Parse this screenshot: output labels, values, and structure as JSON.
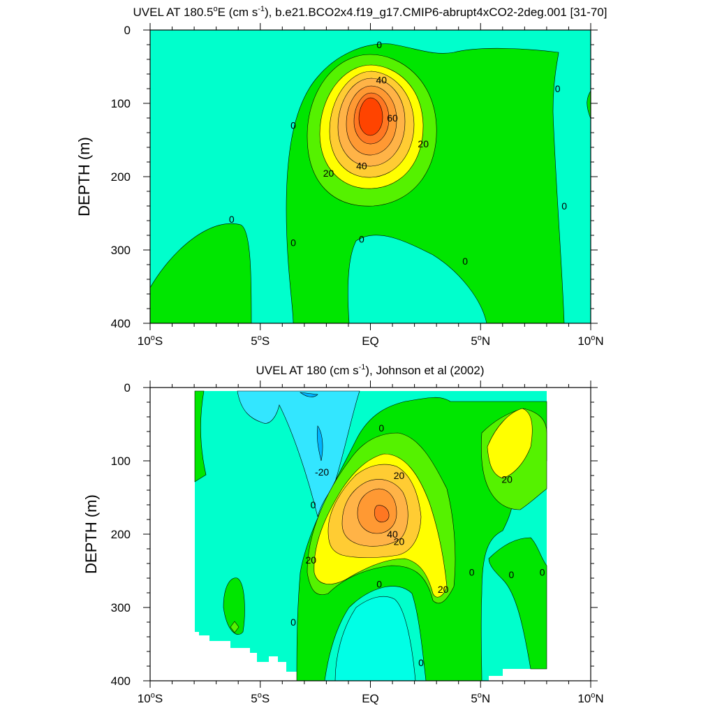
{
  "palette": {
    "cyan_light": "#00ffcc",
    "cyan": "#00ffe6",
    "blue_light": "#33e6ff",
    "blue": "#00b4ff",
    "green": "#00e600",
    "green_light": "#55f200",
    "yellow": "#ffff00",
    "gold": "#ffcc33",
    "orange_light": "#ffb347",
    "orange": "#ff9933",
    "orange_dark": "#ff4400"
  },
  "chart_data": [
    {
      "type": "contour",
      "title": "UVEL AT 180.5°E (cm s⁻¹), b.e21.BCO2x4.f19_g17.CMIP6-abrupt4xCO2-2deg.001 [31-70]",
      "title_parts": {
        "pre": "UVEL AT 180.5",
        "deg": "o",
        "mid": "E (cm s",
        "sup": "-1",
        "post": "), b.e21.BCO2x4.f19_g17.CMIP6-abrupt4xCO2-2deg.001 [31-70]"
      },
      "xlabel": "",
      "ylabel": "DEPTH (m)",
      "xlim": [
        -10,
        10
      ],
      "ylim": [
        0,
        400
      ],
      "x_ticks": [
        {
          "value": -10,
          "label": "10",
          "deg": "o",
          "hemi": "S"
        },
        {
          "value": -5,
          "label": "5",
          "deg": "o",
          "hemi": "S"
        },
        {
          "value": 0,
          "label": "EQ",
          "deg": "",
          "hemi": ""
        },
        {
          "value": 5,
          "label": "5",
          "deg": "o",
          "hemi": "N"
        },
        {
          "value": 10,
          "label": "10",
          "deg": "o",
          "hemi": "N"
        }
      ],
      "y_ticks": [
        0,
        100,
        200,
        300,
        400
      ],
      "y_tick_labels": [
        "0",
        "100",
        "200",
        "300",
        "400"
      ],
      "contour_interval": 10,
      "core": {
        "lat": 0.0,
        "depth": 125,
        "max": 70
      },
      "contour_labels": [
        {
          "text": "0",
          "lat": 0.4,
          "depth": 20
        },
        {
          "text": "40",
          "lat": 0.5,
          "depth": 68
        },
        {
          "text": "0",
          "lat": 8.5,
          "depth": 80
        },
        {
          "text": "0",
          "lat": -3.5,
          "depth": 130
        },
        {
          "text": "60",
          "lat": 1.0,
          "depth": 120
        },
        {
          "text": "20",
          "lat": 2.4,
          "depth": 155
        },
        {
          "text": "40",
          "lat": -0.4,
          "depth": 185
        },
        {
          "text": "20",
          "lat": -1.9,
          "depth": 195
        },
        {
          "text": "0",
          "lat": 8.8,
          "depth": 240
        },
        {
          "text": "0",
          "lat": -6.3,
          "depth": 258
        },
        {
          "text": "0",
          "lat": -0.4,
          "depth": 285
        },
        {
          "text": "0",
          "lat": -3.5,
          "depth": 290
        },
        {
          "text": "0",
          "lat": 4.3,
          "depth": 315
        }
      ]
    },
    {
      "type": "contour",
      "title": "UVEL AT 180 (cm s⁻¹), Johnson et al (2002)",
      "title_parts": {
        "pre": "UVEL AT 180 (cm s",
        "deg": "",
        "mid": "",
        "sup": "-1",
        "post": "), Johnson et al (2002)"
      },
      "xlabel": "",
      "ylabel": "DEPTH (m)",
      "xlim": [
        -10,
        10
      ],
      "ylim": [
        0,
        400
      ],
      "x_ticks": [
        {
          "value": -10,
          "label": "10",
          "deg": "o",
          "hemi": "S"
        },
        {
          "value": -5,
          "label": "5",
          "deg": "o",
          "hemi": "S"
        },
        {
          "value": 0,
          "label": "EQ",
          "deg": "",
          "hemi": ""
        },
        {
          "value": 5,
          "label": "5",
          "deg": "o",
          "hemi": "N"
        },
        {
          "value": 10,
          "label": "10",
          "deg": "o",
          "hemi": "N"
        }
      ],
      "y_ticks": [
        0,
        100,
        200,
        300,
        400
      ],
      "y_tick_labels": [
        "0",
        "100",
        "200",
        "300",
        "400"
      ],
      "contour_interval": 10,
      "core": {
        "lat": 0.5,
        "depth": 170,
        "max": 50
      },
      "contour_labels": [
        {
          "text": "0",
          "lat": 0.5,
          "depth": 55
        },
        {
          "text": "20",
          "lat": 1.3,
          "depth": 120
        },
        {
          "text": "-20",
          "lat": -2.2,
          "depth": 115
        },
        {
          "text": "20",
          "lat": 6.2,
          "depth": 125
        },
        {
          "text": "0",
          "lat": -2.6,
          "depth": 160
        },
        {
          "text": "40",
          "lat": 1.0,
          "depth": 200
        },
        {
          "text": "20",
          "lat": 1.3,
          "depth": 210
        },
        {
          "text": "20",
          "lat": -2.7,
          "depth": 235
        },
        {
          "text": "0",
          "lat": 4.6,
          "depth": 252
        },
        {
          "text": "0",
          "lat": 6.4,
          "depth": 255
        },
        {
          "text": "0",
          "lat": 7.8,
          "depth": 252
        },
        {
          "text": "0",
          "lat": 0.4,
          "depth": 268
        },
        {
          "text": "20",
          "lat": 3.3,
          "depth": 275
        },
        {
          "text": "0",
          "lat": -3.5,
          "depth": 320
        },
        {
          "text": "0",
          "lat": 2.3,
          "depth": 375
        }
      ]
    }
  ]
}
